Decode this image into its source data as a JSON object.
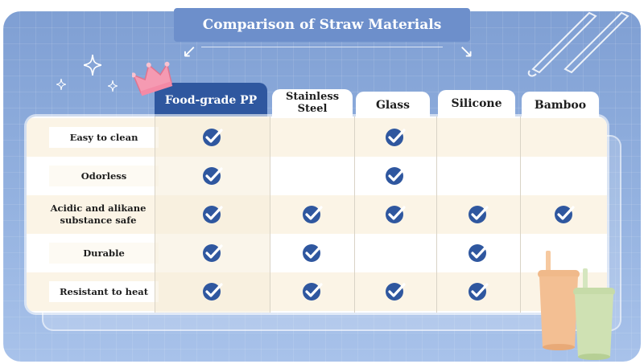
{
  "title": "Comparison of Straw Materials",
  "columns": [
    {
      "label": "Food-grade PP"
    },
    {
      "label": "Stainless Steel"
    },
    {
      "label": "Glass"
    },
    {
      "label": "Silicone"
    },
    {
      "label": "Bamboo"
    }
  ],
  "rows": [
    {
      "label": "Easy to clean",
      "checks": [
        true,
        false,
        true,
        false,
        false
      ]
    },
    {
      "label": "Odorless",
      "checks": [
        true,
        false,
        true,
        false,
        false
      ]
    },
    {
      "label": "Acidic and alikane  substance safe",
      "checks": [
        true,
        true,
        true,
        true,
        true
      ]
    },
    {
      "label": "Durable",
      "checks": [
        true,
        true,
        false,
        true,
        false
      ]
    },
    {
      "label": "Resistant to heat",
      "checks": [
        true,
        true,
        true,
        true,
        false
      ]
    }
  ],
  "colors": {
    "accent": "#2f579f",
    "background": "#8ba9da",
    "row_alt": "#fbf4e6",
    "crown": "#f48aa6"
  },
  "icons": {
    "check": "check-circle-icon",
    "crown": "crown-icon",
    "sparkle": "sparkle-icon",
    "arrow": "curved-arrow-icon"
  }
}
